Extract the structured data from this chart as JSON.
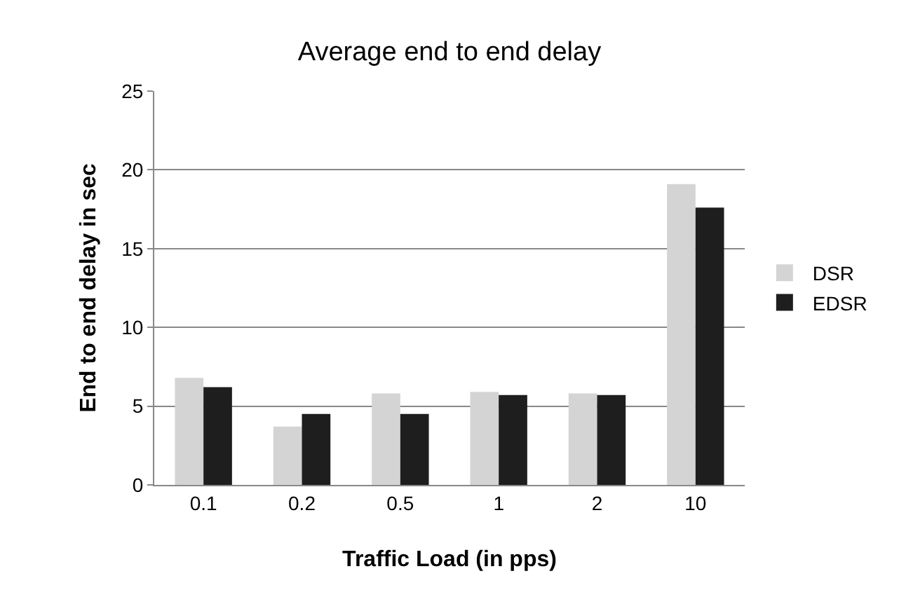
{
  "chart_data": {
    "type": "bar",
    "title": "Average end to end delay",
    "xlabel": "Traffic Load (in pps)",
    "ylabel": "End to end delay in sec",
    "categories": [
      "0.1",
      "0.2",
      "0.5",
      "1",
      "2",
      "10"
    ],
    "series": [
      {
        "name": "DSR",
        "color": "#d4d4d4",
        "values": [
          6.8,
          3.7,
          5.8,
          5.9,
          5.8,
          19.1
        ]
      },
      {
        "name": "EDSR",
        "color": "#1e1e1e",
        "values": [
          6.2,
          4.5,
          4.5,
          5.7,
          5.7,
          17.6
        ]
      }
    ],
    "ylim": [
      0,
      25
    ],
    "yticks": [
      0,
      5,
      10,
      15,
      20,
      25
    ],
    "grid": "y",
    "legend": "right"
  }
}
